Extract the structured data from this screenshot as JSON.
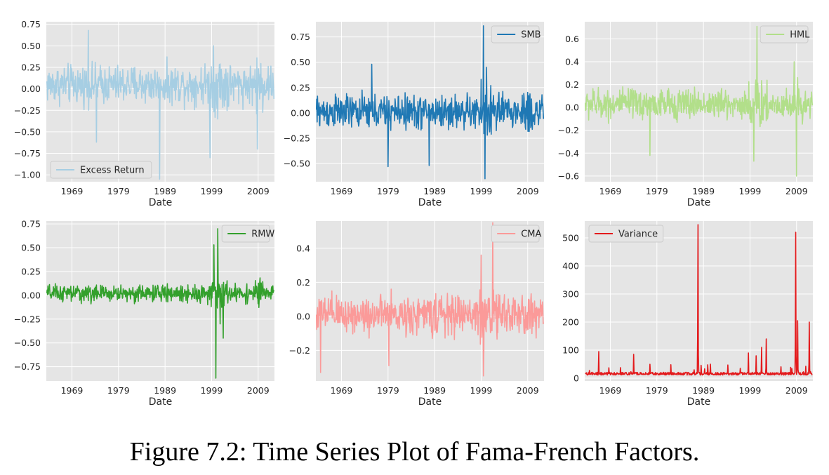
{
  "caption": "Figure 7.2: Time Series Plot of Fama-French Factors.",
  "chart_data": [
    {
      "type": "line",
      "series": [
        {
          "name": "Excess Return",
          "color": "#a6cee3"
        }
      ],
      "xlabel": "Date",
      "xlim": [
        1963.5,
        2012.5
      ],
      "xticks": [
        1969,
        1979,
        1989,
        1999,
        2009
      ],
      "ylim": [
        -1.08,
        0.78
      ],
      "yticks": [
        {
          "v": 0.75,
          "t": "0.75"
        },
        {
          "v": 0.5,
          "t": "0.50"
        },
        {
          "v": 0.25,
          "t": "0.25"
        },
        {
          "v": 0.0,
          "t": "0.00"
        },
        {
          "v": -0.25,
          "t": "−0.25"
        },
        {
          "v": -0.5,
          "t": "−0.50"
        },
        {
          "v": -0.75,
          "t": "−0.75"
        },
        {
          "v": -1.0,
          "t": "−1.00"
        }
      ],
      "legend_position": "lower left",
      "grid": true,
      "approx_amplitude": 0.2,
      "mean": 0.05,
      "spikes": [
        [
          1972.5,
          0.68
        ],
        [
          1974.3,
          -0.62
        ],
        [
          1987.8,
          -1.05
        ],
        [
          1998.7,
          -0.8
        ],
        [
          1999.4,
          0.5
        ],
        [
          2008.8,
          -0.7
        ]
      ]
    },
    {
      "type": "line",
      "series": [
        {
          "name": "SMB",
          "color": "#1f78b4"
        }
      ],
      "xlabel": "Date",
      "xlim": [
        1963.5,
        2012.5
      ],
      "xticks": [
        1969,
        1979,
        1989,
        1999,
        2009
      ],
      "ylim": [
        -0.68,
        0.9
      ],
      "yticks": [
        {
          "v": 0.75,
          "t": "0.75"
        },
        {
          "v": 0.5,
          "t": "0.50"
        },
        {
          "v": 0.25,
          "t": "0.25"
        },
        {
          "v": 0.0,
          "t": "0.00"
        },
        {
          "v": -0.25,
          "t": "−0.25"
        },
        {
          "v": -0.5,
          "t": "−0.50"
        }
      ],
      "legend_position": "upper right",
      "grid": true,
      "approx_amplitude": 0.15,
      "mean": 0.01,
      "spikes": [
        [
          1979.0,
          -0.53
        ],
        [
          1987.8,
          -0.52
        ],
        [
          1999.5,
          0.86
        ],
        [
          1999.8,
          -0.65
        ],
        [
          1975.5,
          0.48
        ],
        [
          2000.2,
          0.45
        ]
      ]
    },
    {
      "type": "line",
      "series": [
        {
          "name": "HML",
          "color": "#b2df8a"
        }
      ],
      "xlabel": "Date",
      "xlim": [
        1963.5,
        2012.5
      ],
      "xticks": [
        1969,
        1979,
        1989,
        1999,
        2009
      ],
      "ylim": [
        -0.65,
        0.75
      ],
      "yticks": [
        {
          "v": 0.6,
          "t": "0.6"
        },
        {
          "v": 0.4,
          "t": "0.4"
        },
        {
          "v": 0.2,
          "t": "0.2"
        },
        {
          "v": 0.0,
          "t": "0.0"
        },
        {
          "v": -0.2,
          "t": "−0.2"
        },
        {
          "v": -0.4,
          "t": "−0.4"
        },
        {
          "v": -0.6,
          "t": "−0.6"
        }
      ],
      "legend_position": "upper right",
      "grid": true,
      "approx_amplitude": 0.12,
      "mean": 0.03,
      "spikes": [
        [
          2000.5,
          0.71
        ],
        [
          1999.8,
          -0.47
        ],
        [
          2009.0,
          -0.6
        ],
        [
          2008.5,
          0.4
        ],
        [
          1977.5,
          -0.42
        ]
      ]
    },
    {
      "type": "line",
      "series": [
        {
          "name": "RMW",
          "color": "#33a02c"
        }
      ],
      "xlabel": "Date",
      "xlim": [
        1963.5,
        2012.5
      ],
      "xticks": [
        1969,
        1979,
        1989,
        1999,
        2009
      ],
      "ylim": [
        -0.9,
        0.78
      ],
      "yticks": [
        {
          "v": 0.75,
          "t": "0.75"
        },
        {
          "v": 0.5,
          "t": "0.50"
        },
        {
          "v": 0.25,
          "t": "0.25"
        },
        {
          "v": 0.0,
          "t": "0.00"
        },
        {
          "v": -0.25,
          "t": "−0.25"
        },
        {
          "v": -0.5,
          "t": "−0.50"
        },
        {
          "v": -0.75,
          "t": "−0.75"
        }
      ],
      "legend_position": "upper right",
      "grid": true,
      "approx_amplitude": 0.08,
      "mean": 0.02,
      "spikes": [
        [
          2000.3,
          0.7
        ],
        [
          1999.9,
          -0.87
        ],
        [
          2001.5,
          -0.45
        ],
        [
          1999.5,
          0.53
        ],
        [
          2000.8,
          -0.3
        ]
      ]
    },
    {
      "type": "line",
      "series": [
        {
          "name": "CMA",
          "color": "#fb9a99"
        }
      ],
      "xlabel": "Date",
      "xlim": [
        1963.5,
        2012.5
      ],
      "xticks": [
        1969,
        1979,
        1989,
        1999,
        2009
      ],
      "ylim": [
        -0.38,
        0.56
      ],
      "yticks": [
        {
          "v": 0.4,
          "t": "0.4"
        },
        {
          "v": 0.2,
          "t": "0.2"
        },
        {
          "v": 0.0,
          "t": "0.0"
        },
        {
          "v": -0.2,
          "t": "−0.2"
        }
      ],
      "legend_position": "upper right",
      "grid": true,
      "approx_amplitude": 0.1,
      "mean": 0.01,
      "spikes": [
        [
          2001.5,
          0.55
        ],
        [
          1999.5,
          -0.35
        ],
        [
          1964.5,
          -0.33
        ],
        [
          1999.0,
          0.36
        ],
        [
          1979.2,
          -0.29
        ]
      ]
    },
    {
      "type": "line",
      "series": [
        {
          "name": "Variance",
          "color": "#e31a1c"
        }
      ],
      "xlabel": "Date",
      "xlim": [
        1963.5,
        2012.5
      ],
      "xticks": [
        1969,
        1979,
        1989,
        1999,
        2009
      ],
      "ylim": [
        -10,
        560
      ],
      "yticks": [
        {
          "v": 500,
          "t": "500"
        },
        {
          "v": 400,
          "t": "400"
        },
        {
          "v": 300,
          "t": "300"
        },
        {
          "v": 200,
          "t": "200"
        },
        {
          "v": 100,
          "t": "100"
        },
        {
          "v": 0,
          "t": "0"
        }
      ],
      "legend_position": "upper left",
      "grid": true,
      "baseline": 14,
      "spikes": [
        [
          1987.8,
          547
        ],
        [
          2008.8,
          520
        ],
        [
          2009.2,
          205
        ],
        [
          2011.7,
          200
        ],
        [
          2002.5,
          140
        ],
        [
          2001.5,
          110
        ],
        [
          1966.5,
          95
        ],
        [
          1974.0,
          85
        ],
        [
          1998.7,
          90
        ],
        [
          2000.3,
          80
        ],
        [
          1990.5,
          50
        ],
        [
          1982.0,
          48
        ]
      ]
    }
  ]
}
